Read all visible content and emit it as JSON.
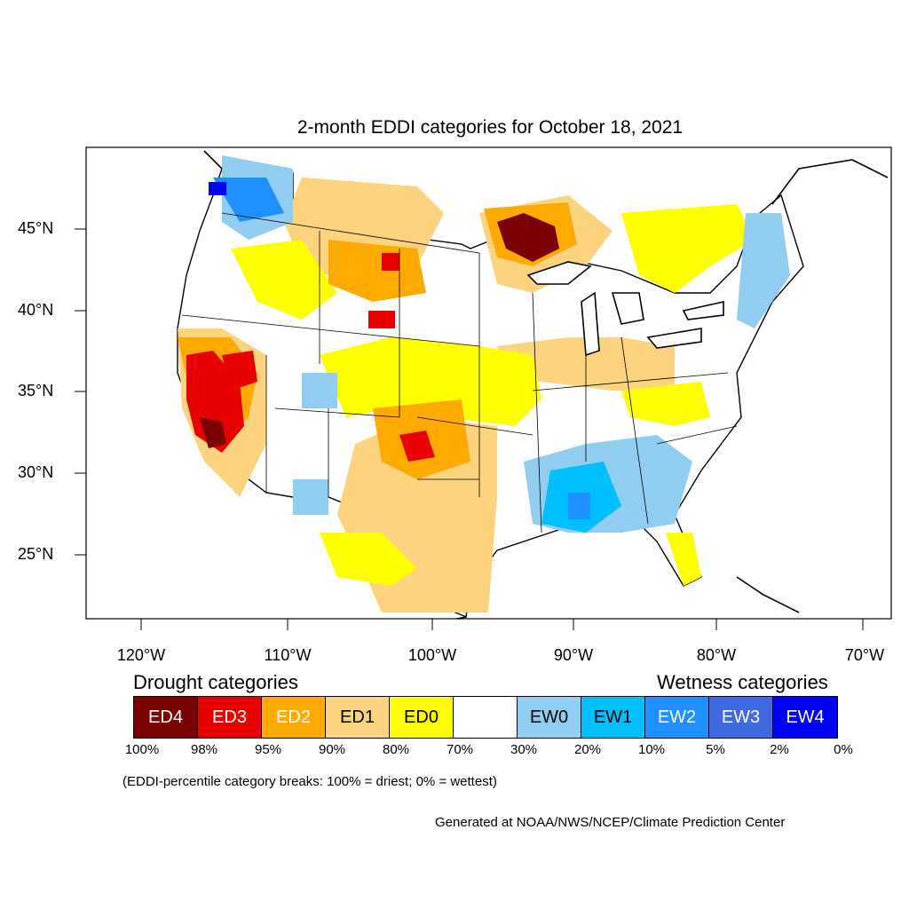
{
  "title": "2-month EDDI categories for October 18, 2021",
  "lat_labels": [
    "45°N",
    "40°N",
    "35°N",
    "30°N",
    "25°N"
  ],
  "lon_labels": [
    "120°W",
    "110°W",
    "100°W",
    "90°W",
    "80°W",
    "70°W"
  ],
  "legend": {
    "drought_heading": "Drought categories",
    "wetness_heading": "Wetness categories",
    "categories": [
      {
        "label": "ED4",
        "color": "#7a0000",
        "text_color": "#ffffff"
      },
      {
        "label": "ED3",
        "color": "#e60000",
        "text_color": "#ffffff"
      },
      {
        "label": "ED2",
        "color": "#ffaa00",
        "text_color": "#ffffff"
      },
      {
        "label": "ED1",
        "color": "#fcd37f",
        "text_color": "#000000"
      },
      {
        "label": "ED0",
        "color": "#ffff00",
        "text_color": "#000000"
      },
      {
        "label": "",
        "color": "#ffffff",
        "text_color": "#000000"
      },
      {
        "label": "EW0",
        "color": "#91cdf0",
        "text_color": "#000000"
      },
      {
        "label": "EW1",
        "color": "#00bfff",
        "text_color": "#000000"
      },
      {
        "label": "EW2",
        "color": "#1e90ff",
        "text_color": "#ffffff"
      },
      {
        "label": "EW3",
        "color": "#4169e1",
        "text_color": "#ffffff"
      },
      {
        "label": "EW4",
        "color": "#0000ff",
        "text_color": "#ffffff"
      }
    ],
    "breaks": [
      "100%",
      "98%",
      "95%",
      "90%",
      "80%",
      "70%",
      "30%",
      "20%",
      "10%",
      "5%",
      "2%",
      "0%"
    ]
  },
  "note": "(EDDI-percentile category breaks: 100% = driest; 0% = wettest)",
  "credit": "Generated at NOAA/NWS/NCEP/Climate Prediction Center"
}
